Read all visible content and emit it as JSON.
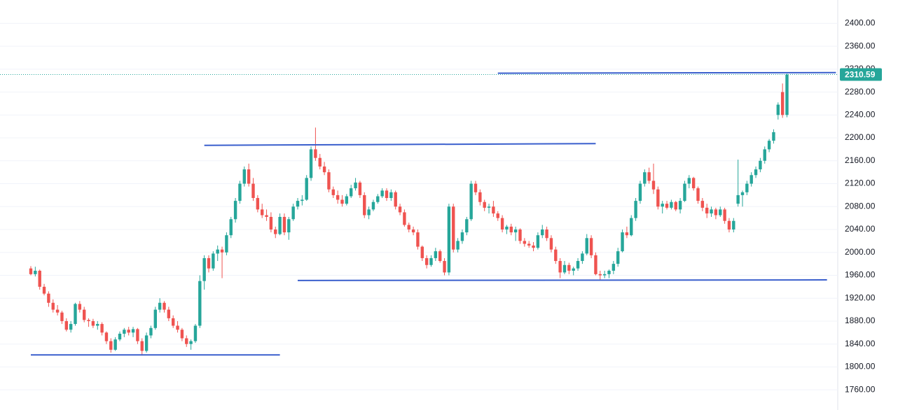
{
  "chart_data": {
    "type": "candlestick",
    "up_color": "#26a69a",
    "down_color": "#ef5350",
    "ylim": [
      1748,
      2420
    ],
    "yticks": [
      {
        "value": 1760,
        "label": "1760.00"
      },
      {
        "value": 1800,
        "label": "1800.00"
      },
      {
        "value": 1840,
        "label": "1840.00"
      },
      {
        "value": 1880,
        "label": "1880.00"
      },
      {
        "value": 1920,
        "label": "1920.00"
      },
      {
        "value": 1960,
        "label": "1960.00"
      },
      {
        "value": 2000,
        "label": "2000.00"
      },
      {
        "value": 2040,
        "label": "2040.00"
      },
      {
        "value": 2080,
        "label": "2080.00"
      },
      {
        "value": 2120,
        "label": "2120.00"
      },
      {
        "value": 2160,
        "label": "2160.00"
      },
      {
        "value": 2200,
        "label": "2200.00"
      },
      {
        "value": 2240,
        "label": "2240.00"
      },
      {
        "value": 2280,
        "label": "2280.00"
      },
      {
        "value": 2320,
        "label": "2320.00"
      },
      {
        "value": 2360,
        "label": "2360.00"
      },
      {
        "value": 2400,
        "label": "2400.00"
      }
    ],
    "grid": true,
    "last_price": 2310.59,
    "trend_color": "#3a5fcd",
    "trend_lines": [
      {
        "from": 0,
        "to": 56,
        "values": [
          1821,
          1821
        ]
      },
      {
        "from": 39,
        "to": 127,
        "values": [
          2187,
          2190
        ]
      },
      {
        "from": 60,
        "to": 179,
        "values": [
          1951,
          1952
        ]
      },
      {
        "from": 105,
        "to": 181,
        "values": [
          2313,
          2314
        ]
      }
    ],
    "ohlc": [
      [
        1972,
        1976,
        1960,
        1962
      ],
      [
        1962,
        1975,
        1958,
        1968
      ],
      [
        1968,
        1970,
        1935,
        1940
      ],
      [
        1940,
        1945,
        1925,
        1928
      ],
      [
        1928,
        1932,
        1905,
        1912
      ],
      [
        1912,
        1918,
        1895,
        1900
      ],
      [
        1900,
        1908,
        1890,
        1895
      ],
      [
        1895,
        1898,
        1875,
        1880
      ],
      [
        1880,
        1885,
        1862,
        1865
      ],
      [
        1865,
        1880,
        1860,
        1875
      ],
      [
        1875,
        1912,
        1872,
        1910
      ],
      [
        1910,
        1915,
        1895,
        1900
      ],
      [
        1900,
        1905,
        1878,
        1882
      ],
      [
        1882,
        1885,
        1870,
        1880
      ],
      [
        1880,
        1884,
        1868,
        1872
      ],
      [
        1872,
        1880,
        1865,
        1875
      ],
      [
        1875,
        1878,
        1855,
        1860
      ],
      [
        1860,
        1862,
        1840,
        1845
      ],
      [
        1845,
        1850,
        1825,
        1830
      ],
      [
        1830,
        1852,
        1828,
        1848
      ],
      [
        1848,
        1862,
        1845,
        1858
      ],
      [
        1858,
        1868,
        1852,
        1865
      ],
      [
        1865,
        1870,
        1855,
        1860
      ],
      [
        1860,
        1870,
        1852,
        1866
      ],
      [
        1866,
        1868,
        1840,
        1845
      ],
      [
        1845,
        1850,
        1820,
        1828
      ],
      [
        1828,
        1860,
        1825,
        1855
      ],
      [
        1855,
        1872,
        1850,
        1868
      ],
      [
        1868,
        1905,
        1865,
        1900
      ],
      [
        1900,
        1920,
        1895,
        1912
      ],
      [
        1912,
        1915,
        1895,
        1900
      ],
      [
        1900,
        1905,
        1880,
        1885
      ],
      [
        1885,
        1890,
        1868,
        1872
      ],
      [
        1872,
        1880,
        1860,
        1865
      ],
      [
        1865,
        1868,
        1845,
        1850
      ],
      [
        1850,
        1855,
        1835,
        1840
      ],
      [
        1840,
        1848,
        1830,
        1845
      ],
      [
        1845,
        1875,
        1842,
        1872
      ],
      [
        1872,
        1960,
        1868,
        1950
      ],
      [
        1950,
        1995,
        1935,
        1990
      ],
      [
        1990,
        1995,
        1965,
        1972
      ],
      [
        1972,
        2002,
        1968,
        1998
      ],
      [
        1998,
        2012,
        1985,
        2005
      ],
      [
        2005,
        2010,
        1955,
        2000
      ],
      [
        2000,
        2035,
        1995,
        2030
      ],
      [
        2030,
        2062,
        2025,
        2058
      ],
      [
        2058,
        2095,
        2052,
        2090
      ],
      [
        2090,
        2125,
        2085,
        2120
      ],
      [
        2120,
        2150,
        2115,
        2145
      ],
      [
        2145,
        2155,
        2115,
        2120
      ],
      [
        2120,
        2130,
        2090,
        2095
      ],
      [
        2095,
        2100,
        2070,
        2075
      ],
      [
        2075,
        2085,
        2060,
        2065
      ],
      [
        2065,
        2075,
        2055,
        2062
      ],
      [
        2062,
        2070,
        2035,
        2040
      ],
      [
        2040,
        2045,
        2025,
        2032
      ],
      [
        2032,
        2068,
        2030,
        2062
      ],
      [
        2062,
        2068,
        2030,
        2035
      ],
      [
        2035,
        2062,
        2022,
        2058
      ],
      [
        2058,
        2085,
        2055,
        2080
      ],
      [
        2080,
        2095,
        2075,
        2090
      ],
      [
        2090,
        2100,
        2082,
        2092
      ],
      [
        2092,
        2135,
        2090,
        2130
      ],
      [
        2130,
        2185,
        2125,
        2180
      ],
      [
        2180,
        2218,
        2160,
        2165
      ],
      [
        2165,
        2172,
        2145,
        2150
      ],
      [
        2150,
        2158,
        2135,
        2140
      ],
      [
        2140,
        2145,
        2105,
        2110
      ],
      [
        2110,
        2115,
        2095,
        2100
      ],
      [
        2100,
        2108,
        2085,
        2092
      ],
      [
        2092,
        2100,
        2080,
        2085
      ],
      [
        2085,
        2102,
        2082,
        2098
      ],
      [
        2098,
        2118,
        2095,
        2112
      ],
      [
        2112,
        2130,
        2108,
        2122
      ],
      [
        2122,
        2125,
        2095,
        2100
      ],
      [
        2100,
        2105,
        2060,
        2065
      ],
      [
        2065,
        2080,
        2058,
        2075
      ],
      [
        2075,
        2092,
        2072,
        2088
      ],
      [
        2088,
        2102,
        2085,
        2098
      ],
      [
        2098,
        2112,
        2095,
        2108
      ],
      [
        2108,
        2112,
        2090,
        2095
      ],
      [
        2095,
        2110,
        2090,
        2105
      ],
      [
        2105,
        2108,
        2075,
        2080
      ],
      [
        2080,
        2085,
        2065,
        2070
      ],
      [
        2070,
        2075,
        2045,
        2048
      ],
      [
        2048,
        2052,
        2035,
        2040
      ],
      [
        2040,
        2045,
        2030,
        2035
      ],
      [
        2035,
        2040,
        2005,
        2010
      ],
      [
        2010,
        2012,
        1985,
        1990
      ],
      [
        1990,
        1995,
        1972,
        1978
      ],
      [
        1978,
        1995,
        1975,
        1990
      ],
      [
        1990,
        2008,
        1985,
        2002
      ],
      [
        2002,
        2005,
        1982,
        1985
      ],
      [
        1985,
        1990,
        1960,
        1965
      ],
      [
        1965,
        2085,
        1960,
        2080
      ],
      [
        2080,
        2085,
        2000,
        2005
      ],
      [
        2005,
        2025,
        2000,
        2020
      ],
      [
        2020,
        2040,
        2015,
        2035
      ],
      [
        2035,
        2062,
        2030,
        2058
      ],
      [
        2058,
        2125,
        2055,
        2120
      ],
      [
        2120,
        2125,
        2100,
        2105
      ],
      [
        2105,
        2110,
        2082,
        2088
      ],
      [
        2088,
        2092,
        2072,
        2078
      ],
      [
        2078,
        2085,
        2068,
        2080
      ],
      [
        2080,
        2090,
        2062,
        2068
      ],
      [
        2068,
        2072,
        2055,
        2060
      ],
      [
        2060,
        2065,
        2035,
        2040
      ],
      [
        2040,
        2048,
        2032,
        2045
      ],
      [
        2045,
        2050,
        2030,
        2035
      ],
      [
        2035,
        2045,
        2020,
        2040
      ],
      [
        2040,
        2042,
        2015,
        2020
      ],
      [
        2020,
        2025,
        2010,
        2015
      ],
      [
        2015,
        2020,
        2008,
        2012
      ],
      [
        2012,
        2018,
        2002,
        2008
      ],
      [
        2008,
        2035,
        2005,
        2030
      ],
      [
        2030,
        2048,
        2025,
        2040
      ],
      [
        2040,
        2045,
        2020,
        2025
      ],
      [
        2025,
        2030,
        2000,
        2005
      ],
      [
        2005,
        2010,
        1980,
        1985
      ],
      [
        1985,
        1990,
        1955,
        1965
      ],
      [
        1965,
        1985,
        1962,
        1978
      ],
      [
        1978,
        1982,
        1962,
        1968
      ],
      [
        1968,
        1975,
        1960,
        1972
      ],
      [
        1972,
        1990,
        1968,
        1985
      ],
      [
        1985,
        2002,
        1980,
        1998
      ],
      [
        1998,
        2032,
        1995,
        2025
      ],
      [
        2025,
        2030,
        1990,
        1995
      ],
      [
        1995,
        2000,
        1960,
        1962
      ],
      [
        1962,
        1968,
        1952,
        1960
      ],
      [
        1960,
        1968,
        1955,
        1962
      ],
      [
        1962,
        1970,
        1955,
        1968
      ],
      [
        1968,
        1985,
        1962,
        1980
      ],
      [
        1980,
        2008,
        1975,
        2002
      ],
      [
        2002,
        2040,
        2000,
        2035
      ],
      [
        2035,
        2045,
        2025,
        2030
      ],
      [
        2030,
        2065,
        2028,
        2060
      ],
      [
        2060,
        2095,
        2055,
        2090
      ],
      [
        2090,
        2125,
        2085,
        2120
      ],
      [
        2120,
        2145,
        2115,
        2140
      ],
      [
        2140,
        2148,
        2120,
        2125
      ],
      [
        2125,
        2155,
        2102,
        2110
      ],
      [
        2110,
        2115,
        2075,
        2080
      ],
      [
        2080,
        2090,
        2068,
        2085
      ],
      [
        2085,
        2090,
        2075,
        2078
      ],
      [
        2078,
        2092,
        2075,
        2088
      ],
      [
        2088,
        2090,
        2072,
        2075
      ],
      [
        2075,
        2095,
        2068,
        2090
      ],
      [
        2090,
        2125,
        2088,
        2120
      ],
      [
        2120,
        2135,
        2112,
        2130
      ],
      [
        2130,
        2132,
        2108,
        2112
      ],
      [
        2112,
        2115,
        2085,
        2090
      ],
      [
        2090,
        2095,
        2072,
        2078
      ],
      [
        2078,
        2085,
        2060,
        2068
      ],
      [
        2068,
        2080,
        2062,
        2075
      ],
      [
        2075,
        2078,
        2058,
        2065
      ],
      [
        2065,
        2080,
        2062,
        2075
      ],
      [
        2075,
        2078,
        2050,
        2055
      ],
      [
        2055,
        2060,
        2035,
        2040
      ],
      [
        2040,
        2060,
        2035,
        2055
      ],
      [
        2085,
        2162,
        2080,
        2100
      ],
      [
        2100,
        2108,
        2080,
        2105
      ],
      [
        2105,
        2125,
        2100,
        2120
      ],
      [
        2120,
        2140,
        2115,
        2135
      ],
      [
        2135,
        2150,
        2130,
        2145
      ],
      [
        2145,
        2165,
        2140,
        2160
      ],
      [
        2160,
        2185,
        2155,
        2180
      ],
      [
        2180,
        2198,
        2175,
        2195
      ],
      [
        2195,
        2215,
        2190,
        2210
      ],
      [
        2240,
        2262,
        2232,
        2258
      ],
      [
        2280,
        2295,
        2235,
        2240
      ],
      [
        2240,
        2312,
        2236,
        2310.59
      ]
    ]
  }
}
